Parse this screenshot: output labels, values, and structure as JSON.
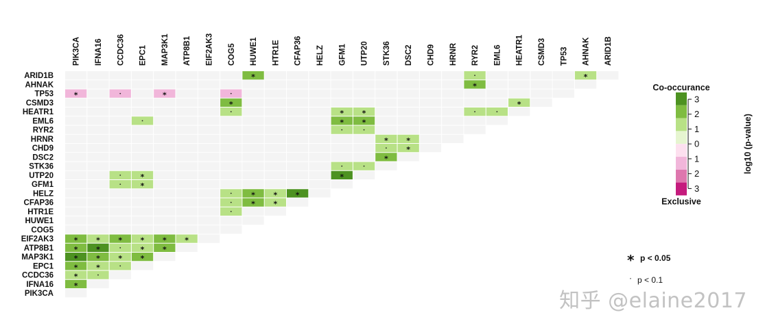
{
  "chart_data": {
    "type": "heatmap",
    "title": "",
    "genes": [
      "PIK3CA",
      "IFNA16",
      "CCDC36",
      "EPC1",
      "MAP3K1",
      "ATP8B1",
      "EIF2AK3",
      "COG5",
      "HUWE1",
      "HTR1E",
      "CFAP36",
      "HELZ",
      "GFM1",
      "UTP20",
      "STK36",
      "DSC2",
      "CHD9",
      "HRNR",
      "RYR2",
      "EML6",
      "HEATR1",
      "CSMD3",
      "TP53",
      "AHNAK",
      "ARID1B"
    ],
    "cells": [
      {
        "row": "ARID1B",
        "col": "HUWE1",
        "value": 2,
        "sig": "*"
      },
      {
        "row": "ARID1B",
        "col": "RYR2",
        "value": 1,
        "sig": "."
      },
      {
        "row": "ARID1B",
        "col": "AHNAK",
        "value": 1,
        "sig": "*"
      },
      {
        "row": "AHNAK",
        "col": "RYR2",
        "value": 2,
        "sig": "*"
      },
      {
        "row": "TP53",
        "col": "PIK3CA",
        "value": -1,
        "sig": "*"
      },
      {
        "row": "TP53",
        "col": "CCDC36",
        "value": -1,
        "sig": "."
      },
      {
        "row": "TP53",
        "col": "MAP3K1",
        "value": -1,
        "sig": "*"
      },
      {
        "row": "TP53",
        "col": "COG5",
        "value": -1,
        "sig": "."
      },
      {
        "row": "CSMD3",
        "col": "COG5",
        "value": 2,
        "sig": "*"
      },
      {
        "row": "CSMD3",
        "col": "HEATR1",
        "value": 1,
        "sig": "*"
      },
      {
        "row": "HEATR1",
        "col": "COG5",
        "value": 1,
        "sig": "."
      },
      {
        "row": "HEATR1",
        "col": "GFM1",
        "value": 1,
        "sig": "*"
      },
      {
        "row": "HEATR1",
        "col": "UTP20",
        "value": 1,
        "sig": "*"
      },
      {
        "row": "HEATR1",
        "col": "RYR2",
        "value": 1,
        "sig": "."
      },
      {
        "row": "HEATR1",
        "col": "EML6",
        "value": 1,
        "sig": "."
      },
      {
        "row": "EML6",
        "col": "EPC1",
        "value": 1,
        "sig": "."
      },
      {
        "row": "EML6",
        "col": "GFM1",
        "value": 2,
        "sig": "*"
      },
      {
        "row": "EML6",
        "col": "UTP20",
        "value": 2,
        "sig": "*"
      },
      {
        "row": "RYR2",
        "col": "GFM1",
        "value": 1,
        "sig": "."
      },
      {
        "row": "RYR2",
        "col": "UTP20",
        "value": 1,
        "sig": "."
      },
      {
        "row": "HRNR",
        "col": "STK36",
        "value": 1,
        "sig": "*"
      },
      {
        "row": "HRNR",
        "col": "DSC2",
        "value": 1,
        "sig": "*"
      },
      {
        "row": "CHD9",
        "col": "STK36",
        "value": 1,
        "sig": "."
      },
      {
        "row": "CHD9",
        "col": "DSC2",
        "value": 1,
        "sig": "*"
      },
      {
        "row": "DSC2",
        "col": "STK36",
        "value": 2,
        "sig": "*"
      },
      {
        "row": "STK36",
        "col": "GFM1",
        "value": 1,
        "sig": "."
      },
      {
        "row": "STK36",
        "col": "UTP20",
        "value": 1,
        "sig": "."
      },
      {
        "row": "UTP20",
        "col": "CCDC36",
        "value": 1,
        "sig": "."
      },
      {
        "row": "UTP20",
        "col": "EPC1",
        "value": 1,
        "sig": "*"
      },
      {
        "row": "UTP20",
        "col": "GFM1",
        "value": 3,
        "sig": "*"
      },
      {
        "row": "GFM1",
        "col": "CCDC36",
        "value": 1,
        "sig": "."
      },
      {
        "row": "GFM1",
        "col": "EPC1",
        "value": 1,
        "sig": "*"
      },
      {
        "row": "HELZ",
        "col": "COG5",
        "value": 1,
        "sig": "."
      },
      {
        "row": "HELZ",
        "col": "HUWE1",
        "value": 2,
        "sig": "*"
      },
      {
        "row": "HELZ",
        "col": "HTR1E",
        "value": 1,
        "sig": "*"
      },
      {
        "row": "HELZ",
        "col": "CFAP36",
        "value": 3,
        "sig": "*"
      },
      {
        "row": "CFAP36",
        "col": "COG5",
        "value": 1,
        "sig": "."
      },
      {
        "row": "CFAP36",
        "col": "HUWE1",
        "value": 2,
        "sig": "*"
      },
      {
        "row": "CFAP36",
        "col": "HTR1E",
        "value": 1,
        "sig": "*"
      },
      {
        "row": "HTR1E",
        "col": "COG5",
        "value": 1,
        "sig": "."
      },
      {
        "row": "EIF2AK3",
        "col": "PIK3CA",
        "value": 2,
        "sig": "*"
      },
      {
        "row": "EIF2AK3",
        "col": "IFNA16",
        "value": 1,
        "sig": "*"
      },
      {
        "row": "EIF2AK3",
        "col": "CCDC36",
        "value": 2,
        "sig": "*"
      },
      {
        "row": "EIF2AK3",
        "col": "EPC1",
        "value": 1,
        "sig": "*"
      },
      {
        "row": "EIF2AK3",
        "col": "MAP3K1",
        "value": 2,
        "sig": "*"
      },
      {
        "row": "EIF2AK3",
        "col": "ATP8B1",
        "value": 1,
        "sig": "*"
      },
      {
        "row": "ATP8B1",
        "col": "PIK3CA",
        "value": 2,
        "sig": "*"
      },
      {
        "row": "ATP8B1",
        "col": "IFNA16",
        "value": 3,
        "sig": "*"
      },
      {
        "row": "ATP8B1",
        "col": "CCDC36",
        "value": 1,
        "sig": "."
      },
      {
        "row": "ATP8B1",
        "col": "EPC1",
        "value": 1,
        "sig": "*"
      },
      {
        "row": "ATP8B1",
        "col": "MAP3K1",
        "value": 2,
        "sig": "*"
      },
      {
        "row": "MAP3K1",
        "col": "PIK3CA",
        "value": 3,
        "sig": "*"
      },
      {
        "row": "MAP3K1",
        "col": "IFNA16",
        "value": 2,
        "sig": "*"
      },
      {
        "row": "MAP3K1",
        "col": "CCDC36",
        "value": 1,
        "sig": "*"
      },
      {
        "row": "MAP3K1",
        "col": "EPC1",
        "value": 2,
        "sig": "*"
      },
      {
        "row": "EPC1",
        "col": "PIK3CA",
        "value": 2,
        "sig": "*"
      },
      {
        "row": "EPC1",
        "col": "IFNA16",
        "value": 1,
        "sig": "*"
      },
      {
        "row": "EPC1",
        "col": "CCDC36",
        "value": 1,
        "sig": "."
      },
      {
        "row": "CCDC36",
        "col": "PIK3CA",
        "value": 1,
        "sig": "*"
      },
      {
        "row": "CCDC36",
        "col": "IFNA16",
        "value": 1,
        "sig": "."
      },
      {
        "row": "IFNA16",
        "col": "PIK3CA",
        "value": 2,
        "sig": "*"
      }
    ],
    "legend": {
      "top_label": "Co-occurance",
      "bottom_label": "Exclusive",
      "axis_label": "log10 (p-value)",
      "tick_labels": [
        "3",
        "2",
        "1",
        "0",
        "1",
        "2",
        "3"
      ],
      "color_levels": [
        {
          "value": 3,
          "color": "#4d9221"
        },
        {
          "value": 2,
          "color": "#7fbc41"
        },
        {
          "value": 1,
          "color": "#b8e186"
        },
        {
          "value": 0.3,
          "color": "#e6f5d0"
        },
        {
          "value": -0.3,
          "color": "#fde0ef"
        },
        {
          "value": -1,
          "color": "#f1b6da"
        },
        {
          "value": -2,
          "color": "#de77ae"
        },
        {
          "value": -3,
          "color": "#c51b7d"
        }
      ],
      "empty_color": "#f4f4f4"
    },
    "significance": [
      {
        "symbol": "*",
        "label": "p < 0.05"
      },
      {
        "symbol": "·",
        "label": "p < 0.1"
      }
    ]
  },
  "watermark": "知乎 @elaine2017"
}
